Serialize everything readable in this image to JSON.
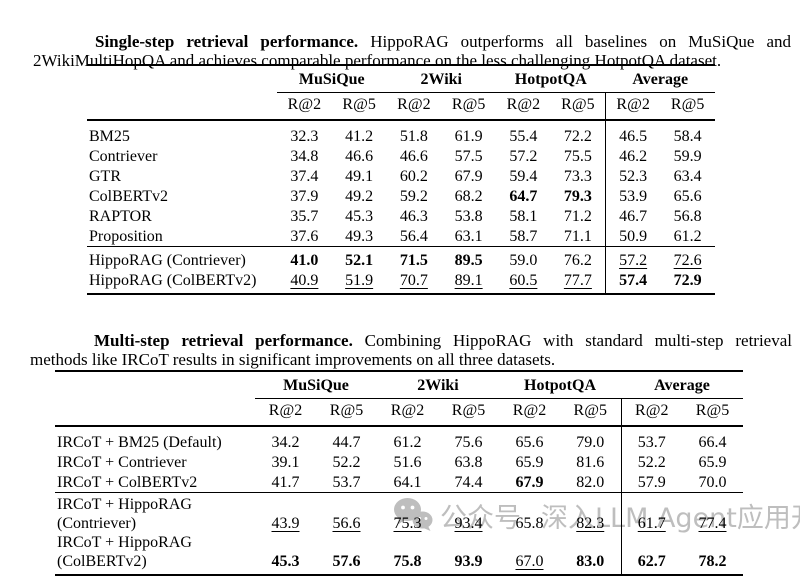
{
  "captions": {
    "single_step": {
      "lead": "Single-step retrieval performance.",
      "rest": " HippoRAG outperforms all baselines on MuSiQue and 2WikiMultiHopQA and achieves comparable performance on the less challenging HotpotQA dataset."
    },
    "multi_step": {
      "lead": "Multi-step retrieval performance.",
      "rest": " Combining HippoRAG with standard multi-step retrieval methods like IRCoT results in significant improvements on all three datasets."
    }
  },
  "tables": {
    "single_step": {
      "groups": [
        "MuSiQue",
        "2Wiki",
        "HotpotQA",
        "Average"
      ],
      "subheaders": [
        "R@2",
        "R@5",
        "R@2",
        "R@5",
        "R@2",
        "R@5",
        "R@2",
        "R@5"
      ],
      "sections": [
        {
          "name": "baselines",
          "rows": [
            {
              "label": "BM25",
              "cells": [
                {
                  "t": "32.3",
                  "s": "p"
                },
                {
                  "t": "41.2",
                  "s": "p"
                },
                {
                  "t": "51.8",
                  "s": "p"
                },
                {
                  "t": "61.9",
                  "s": "p"
                },
                {
                  "t": "55.4",
                  "s": "p"
                },
                {
                  "t": "72.2",
                  "s": "p"
                },
                {
                  "t": "46.5",
                  "s": "p"
                },
                {
                  "t": "58.4",
                  "s": "p"
                }
              ]
            },
            {
              "label": "Contriever",
              "cells": [
                {
                  "t": "34.8",
                  "s": "p"
                },
                {
                  "t": "46.6",
                  "s": "p"
                },
                {
                  "t": "46.6",
                  "s": "p"
                },
                {
                  "t": "57.5",
                  "s": "p"
                },
                {
                  "t": "57.2",
                  "s": "p"
                },
                {
                  "t": "75.5",
                  "s": "p"
                },
                {
                  "t": "46.2",
                  "s": "p"
                },
                {
                  "t": "59.9",
                  "s": "p"
                }
              ]
            },
            {
              "label": "GTR",
              "cells": [
                {
                  "t": "37.4",
                  "s": "p"
                },
                {
                  "t": "49.1",
                  "s": "p"
                },
                {
                  "t": "60.2",
                  "s": "p"
                },
                {
                  "t": "67.9",
                  "s": "p"
                },
                {
                  "t": "59.4",
                  "s": "p"
                },
                {
                  "t": "73.3",
                  "s": "p"
                },
                {
                  "t": "52.3",
                  "s": "p"
                },
                {
                  "t": "63.4",
                  "s": "p"
                }
              ]
            },
            {
              "label": "ColBERTv2",
              "cells": [
                {
                  "t": "37.9",
                  "s": "p"
                },
                {
                  "t": "49.2",
                  "s": "p"
                },
                {
                  "t": "59.2",
                  "s": "p"
                },
                {
                  "t": "68.2",
                  "s": "p"
                },
                {
                  "t": "64.7",
                  "s": "b"
                },
                {
                  "t": "79.3",
                  "s": "b"
                },
                {
                  "t": "53.9",
                  "s": "p"
                },
                {
                  "t": "65.6",
                  "s": "p"
                }
              ]
            },
            {
              "label": "RAPTOR",
              "cells": [
                {
                  "t": "35.7",
                  "s": "p"
                },
                {
                  "t": "45.3",
                  "s": "p"
                },
                {
                  "t": "46.3",
                  "s": "p"
                },
                {
                  "t": "53.8",
                  "s": "p"
                },
                {
                  "t": "58.1",
                  "s": "p"
                },
                {
                  "t": "71.2",
                  "s": "p"
                },
                {
                  "t": "46.7",
                  "s": "p"
                },
                {
                  "t": "56.8",
                  "s": "p"
                }
              ]
            },
            {
              "label": "Proposition",
              "cells": [
                {
                  "t": "37.6",
                  "s": "p"
                },
                {
                  "t": "49.3",
                  "s": "p"
                },
                {
                  "t": "56.4",
                  "s": "p"
                },
                {
                  "t": "63.1",
                  "s": "p"
                },
                {
                  "t": "58.7",
                  "s": "p"
                },
                {
                  "t": "71.1",
                  "s": "p"
                },
                {
                  "t": "50.9",
                  "s": "p"
                },
                {
                  "t": "61.2",
                  "s": "p"
                }
              ]
            }
          ]
        },
        {
          "name": "hipporag",
          "rows": [
            {
              "label": "HippoRAG (Contriever)",
              "cells": [
                {
                  "t": "41.0",
                  "s": "b"
                },
                {
                  "t": "52.1",
                  "s": "b"
                },
                {
                  "t": "71.5",
                  "s": "b"
                },
                {
                  "t": "89.5",
                  "s": "b"
                },
                {
                  "t": "59.0",
                  "s": "p"
                },
                {
                  "t": "76.2",
                  "s": "p"
                },
                {
                  "t": "57.2",
                  "s": "u"
                },
                {
                  "t": "72.6",
                  "s": "u"
                }
              ]
            },
            {
              "label": "HippoRAG (ColBERTv2)",
              "cells": [
                {
                  "t": "40.9",
                  "s": "u"
                },
                {
                  "t": "51.9",
                  "s": "u"
                },
                {
                  "t": "70.7",
                  "s": "u"
                },
                {
                  "t": "89.1",
                  "s": "u"
                },
                {
                  "t": "60.5",
                  "s": "u"
                },
                {
                  "t": "77.7",
                  "s": "u"
                },
                {
                  "t": "57.4",
                  "s": "b"
                },
                {
                  "t": "72.9",
                  "s": "b"
                }
              ]
            }
          ]
        }
      ]
    },
    "multi_step": {
      "groups": [
        "MuSiQue",
        "2Wiki",
        "HotpotQA",
        "Average"
      ],
      "subheaders": [
        "R@2",
        "R@5",
        "R@2",
        "R@5",
        "R@2",
        "R@5",
        "R@2",
        "R@5"
      ],
      "sections": [
        {
          "name": "ircot-baselines",
          "rows": [
            {
              "label": "IRCoT + BM25 (Default)",
              "cells": [
                {
                  "t": "34.2",
                  "s": "p"
                },
                {
                  "t": "44.7",
                  "s": "p"
                },
                {
                  "t": "61.2",
                  "s": "p"
                },
                {
                  "t": "75.6",
                  "s": "p"
                },
                {
                  "t": "65.6",
                  "s": "p"
                },
                {
                  "t": "79.0",
                  "s": "p"
                },
                {
                  "t": "53.7",
                  "s": "p"
                },
                {
                  "t": "66.4",
                  "s": "p"
                }
              ]
            },
            {
              "label": "IRCoT + Contriever",
              "cells": [
                {
                  "t": "39.1",
                  "s": "p"
                },
                {
                  "t": "52.2",
                  "s": "p"
                },
                {
                  "t": "51.6",
                  "s": "p"
                },
                {
                  "t": "63.8",
                  "s": "p"
                },
                {
                  "t": "65.9",
                  "s": "p"
                },
                {
                  "t": "81.6",
                  "s": "p"
                },
                {
                  "t": "52.2",
                  "s": "p"
                },
                {
                  "t": "65.9",
                  "s": "p"
                }
              ]
            },
            {
              "label": "IRCoT + ColBERTv2",
              "cells": [
                {
                  "t": "41.7",
                  "s": "p"
                },
                {
                  "t": "53.7",
                  "s": "p"
                },
                {
                  "t": "64.1",
                  "s": "p"
                },
                {
                  "t": "74.4",
                  "s": "p"
                },
                {
                  "t": "67.9",
                  "s": "b"
                },
                {
                  "t": "82.0",
                  "s": "p"
                },
                {
                  "t": "57.9",
                  "s": "p"
                },
                {
                  "t": "70.0",
                  "s": "p"
                }
              ]
            }
          ]
        },
        {
          "name": "ircot-hipporag",
          "rows": [
            {
              "label": "IRCoT + HippoRAG (Contriever)",
              "cells": [
                {
                  "t": "43.9",
                  "s": "u"
                },
                {
                  "t": "56.6",
                  "s": "u"
                },
                {
                  "t": "75.3",
                  "s": "u"
                },
                {
                  "t": "93.4",
                  "s": "u"
                },
                {
                  "t": "65.8",
                  "s": "p"
                },
                {
                  "t": "82.3",
                  "s": "u"
                },
                {
                  "t": "61.7",
                  "s": "u"
                },
                {
                  "t": "77.4",
                  "s": "u"
                }
              ]
            },
            {
              "label": "IRCoT + HippoRAG (ColBERTv2)",
              "cells": [
                {
                  "t": "45.3",
                  "s": "b"
                },
                {
                  "t": "57.6",
                  "s": "b"
                },
                {
                  "t": "75.8",
                  "s": "b"
                },
                {
                  "t": "93.9",
                  "s": "b"
                },
                {
                  "t": "67.0",
                  "s": "u"
                },
                {
                  "t": "83.0",
                  "s": "b"
                },
                {
                  "t": "62.7",
                  "s": "b"
                },
                {
                  "t": "78.2",
                  "s": "b"
                }
              ]
            }
          ]
        }
      ]
    }
  },
  "watermark": {
    "icon": "wechat-icon",
    "source": "公众号",
    "name": "深入LLM Agent应用开发"
  },
  "colors": {
    "background": "#ffffff",
    "text": "#000000",
    "rule": "#000000",
    "watermark": "#aeaeae"
  }
}
